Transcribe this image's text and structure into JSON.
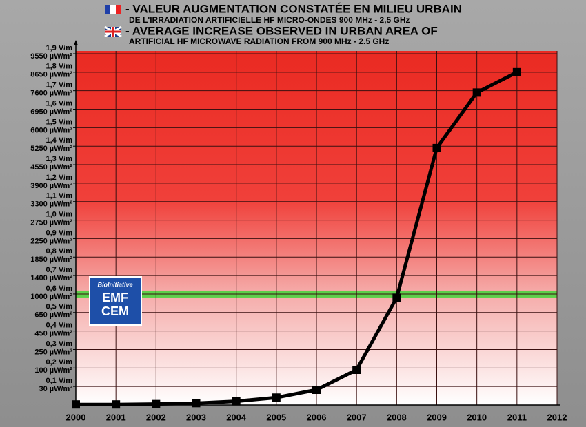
{
  "chart_data": {
    "type": "line",
    "title": "- VALEUR AUGMENTATION CONSTATÉE EN MILIEU URBAIN",
    "subtitle": "DE L'IRRADIATION ARTIFICIELLE HF MICRO-ONDES 900 MHz - 2,5 GHz",
    "title_en": "- AVERAGE INCREASE OBSERVED IN URBAN AREA OF",
    "subtitle_en": "ARTIFICIAL HF MICROWAVE RADIATION FROM 900 MHz - 2.5 GHz",
    "logo": {
      "top": "BioInitiative",
      "line1": "EMF",
      "line2": "CEM"
    },
    "x": [
      2000,
      2001,
      2002,
      2003,
      2004,
      2005,
      2006,
      2007,
      2008,
      2009,
      2010,
      2011
    ],
    "series": [
      {
        "color": "#000000",
        "values": [
          0.003,
          0.003,
          0.005,
          0.01,
          0.02,
          0.04,
          0.082,
          0.19,
          0.58,
          1.39,
          1.69,
          1.8
        ]
      }
    ],
    "xlim": [
      2000,
      2012
    ],
    "xticks": [
      2000,
      2001,
      2002,
      2003,
      2004,
      2005,
      2006,
      2007,
      2008,
      2009,
      2010,
      2011,
      2012
    ],
    "ylim": [
      0,
      1.9
    ],
    "yticks": [
      {
        "value": 0.1,
        "label": "0,1 V/m"
      },
      {
        "value": 0.2,
        "label": "0,2 V/m"
      },
      {
        "value": 0.3,
        "label": "0,3 V/m"
      },
      {
        "value": 0.4,
        "label": "0,4 V/m"
      },
      {
        "value": 0.5,
        "label": "0,5 V/m"
      },
      {
        "value": 0.6,
        "label": "0,6 V/m"
      },
      {
        "value": 0.7,
        "label": "0,7 V/m"
      },
      {
        "value": 0.8,
        "label": "0,8 V/m"
      },
      {
        "value": 0.9,
        "label": "0,9 V/m"
      },
      {
        "value": 1.0,
        "label": "1,0 V/m"
      },
      {
        "value": 1.1,
        "label": "1,1 V/m"
      },
      {
        "value": 1.2,
        "label": "1,2 V/m"
      },
      {
        "value": 1.3,
        "label": "1,3 V/m"
      },
      {
        "value": 1.4,
        "label": "1,4 V/m"
      },
      {
        "value": 1.5,
        "label": "1,5 V/m"
      },
      {
        "value": 1.6,
        "label": "1,6 V/m"
      },
      {
        "value": 1.7,
        "label": "1,7 V/m"
      },
      {
        "value": 1.8,
        "label": "1,8 V/m"
      },
      {
        "value": 1.9,
        "label": "1,9 V/m"
      }
    ],
    "ytick_power_labels": [
      "30 µW/m²",
      "100 µW/m²",
      "250 µW/m²",
      "450 µW/m²",
      "650 µW/m²",
      "1000 µW/m²",
      "1400 µW/m²",
      "1850 µW/m²",
      "2250 µW/m²",
      "2750 µW/m²",
      "3300 µW/m²",
      "3900 µW/m²",
      "4550 µW/m²",
      "5250 µW/m²",
      "6000 µW/m²",
      "6950 µW/m²",
      "7600 µW/m²",
      "8650 µW/m²",
      "9550 µW/m²"
    ],
    "reference_line": {
      "value": 0.6,
      "color": "#5ccf4a"
    },
    "grid": true
  }
}
